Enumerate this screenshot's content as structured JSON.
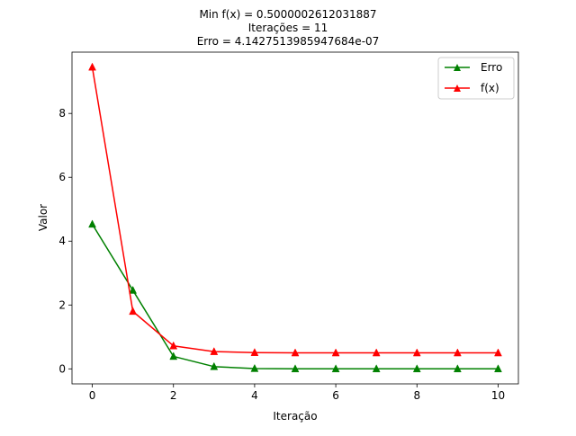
{
  "chart_data": {
    "type": "line",
    "title_lines": [
      "Min f(x) = 0.5000002612031887",
      "Iterações = 11",
      "Erro = 4.1427513985947684e-07"
    ],
    "xlabel": "Iteração",
    "ylabel": "Valor",
    "xlim": [
      -0.5,
      10.5
    ],
    "ylim": [
      -0.47,
      9.92
    ],
    "xticks": [
      0,
      2,
      4,
      6,
      8,
      10
    ],
    "yticks": [
      0,
      2,
      4,
      6,
      8
    ],
    "legend_position": "top-right",
    "grid": false,
    "x": [
      0,
      1,
      2,
      3,
      4,
      5,
      6,
      7,
      8,
      9,
      10
    ],
    "series": [
      {
        "name": "Erro",
        "color": "#008000",
        "marker": "triangle-up",
        "values": [
          4.53,
          2.46,
          0.39,
          0.07,
          0.01,
          0.0,
          0.0,
          0.0,
          0.0,
          0.0,
          0.0
        ]
      },
      {
        "name": "f(x)",
        "color": "#ff0000",
        "marker": "triangle-up",
        "values": [
          9.45,
          1.8,
          0.72,
          0.54,
          0.51,
          0.5,
          0.5,
          0.5,
          0.5,
          0.5,
          0.5
        ]
      }
    ]
  }
}
